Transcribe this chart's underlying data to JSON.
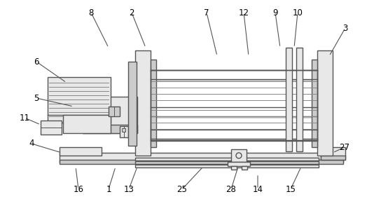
{
  "bg_color": "#ffffff",
  "line_color": "#555555",
  "fill_light": "#e8e8e8",
  "fill_mid": "#cccccc",
  "fill_dark": "#aaaaaa",
  "figsize": [
    5.34,
    2.94
  ],
  "dpi": 100,
  "labels": [
    [
      "8",
      130,
      18,
      155,
      68
    ],
    [
      "2",
      188,
      18,
      208,
      68
    ],
    [
      "7",
      295,
      18,
      310,
      80
    ],
    [
      "12",
      348,
      18,
      355,
      80
    ],
    [
      "9",
      393,
      18,
      400,
      68
    ],
    [
      "10",
      425,
      18,
      420,
      68
    ],
    [
      "3",
      493,
      40,
      470,
      80
    ],
    [
      "6",
      52,
      88,
      95,
      118
    ],
    [
      "5",
      52,
      140,
      105,
      152
    ],
    [
      "11",
      35,
      168,
      58,
      178
    ],
    [
      "4",
      45,
      205,
      88,
      218
    ],
    [
      "16",
      112,
      270,
      108,
      238
    ],
    [
      "1",
      155,
      270,
      165,
      238
    ],
    [
      "13",
      184,
      270,
      196,
      238
    ],
    [
      "25",
      260,
      270,
      290,
      238
    ],
    [
      "28",
      330,
      270,
      340,
      238
    ],
    [
      "14",
      368,
      270,
      368,
      248
    ],
    [
      "15",
      415,
      270,
      430,
      238
    ],
    [
      "27",
      492,
      210,
      475,
      218
    ]
  ]
}
